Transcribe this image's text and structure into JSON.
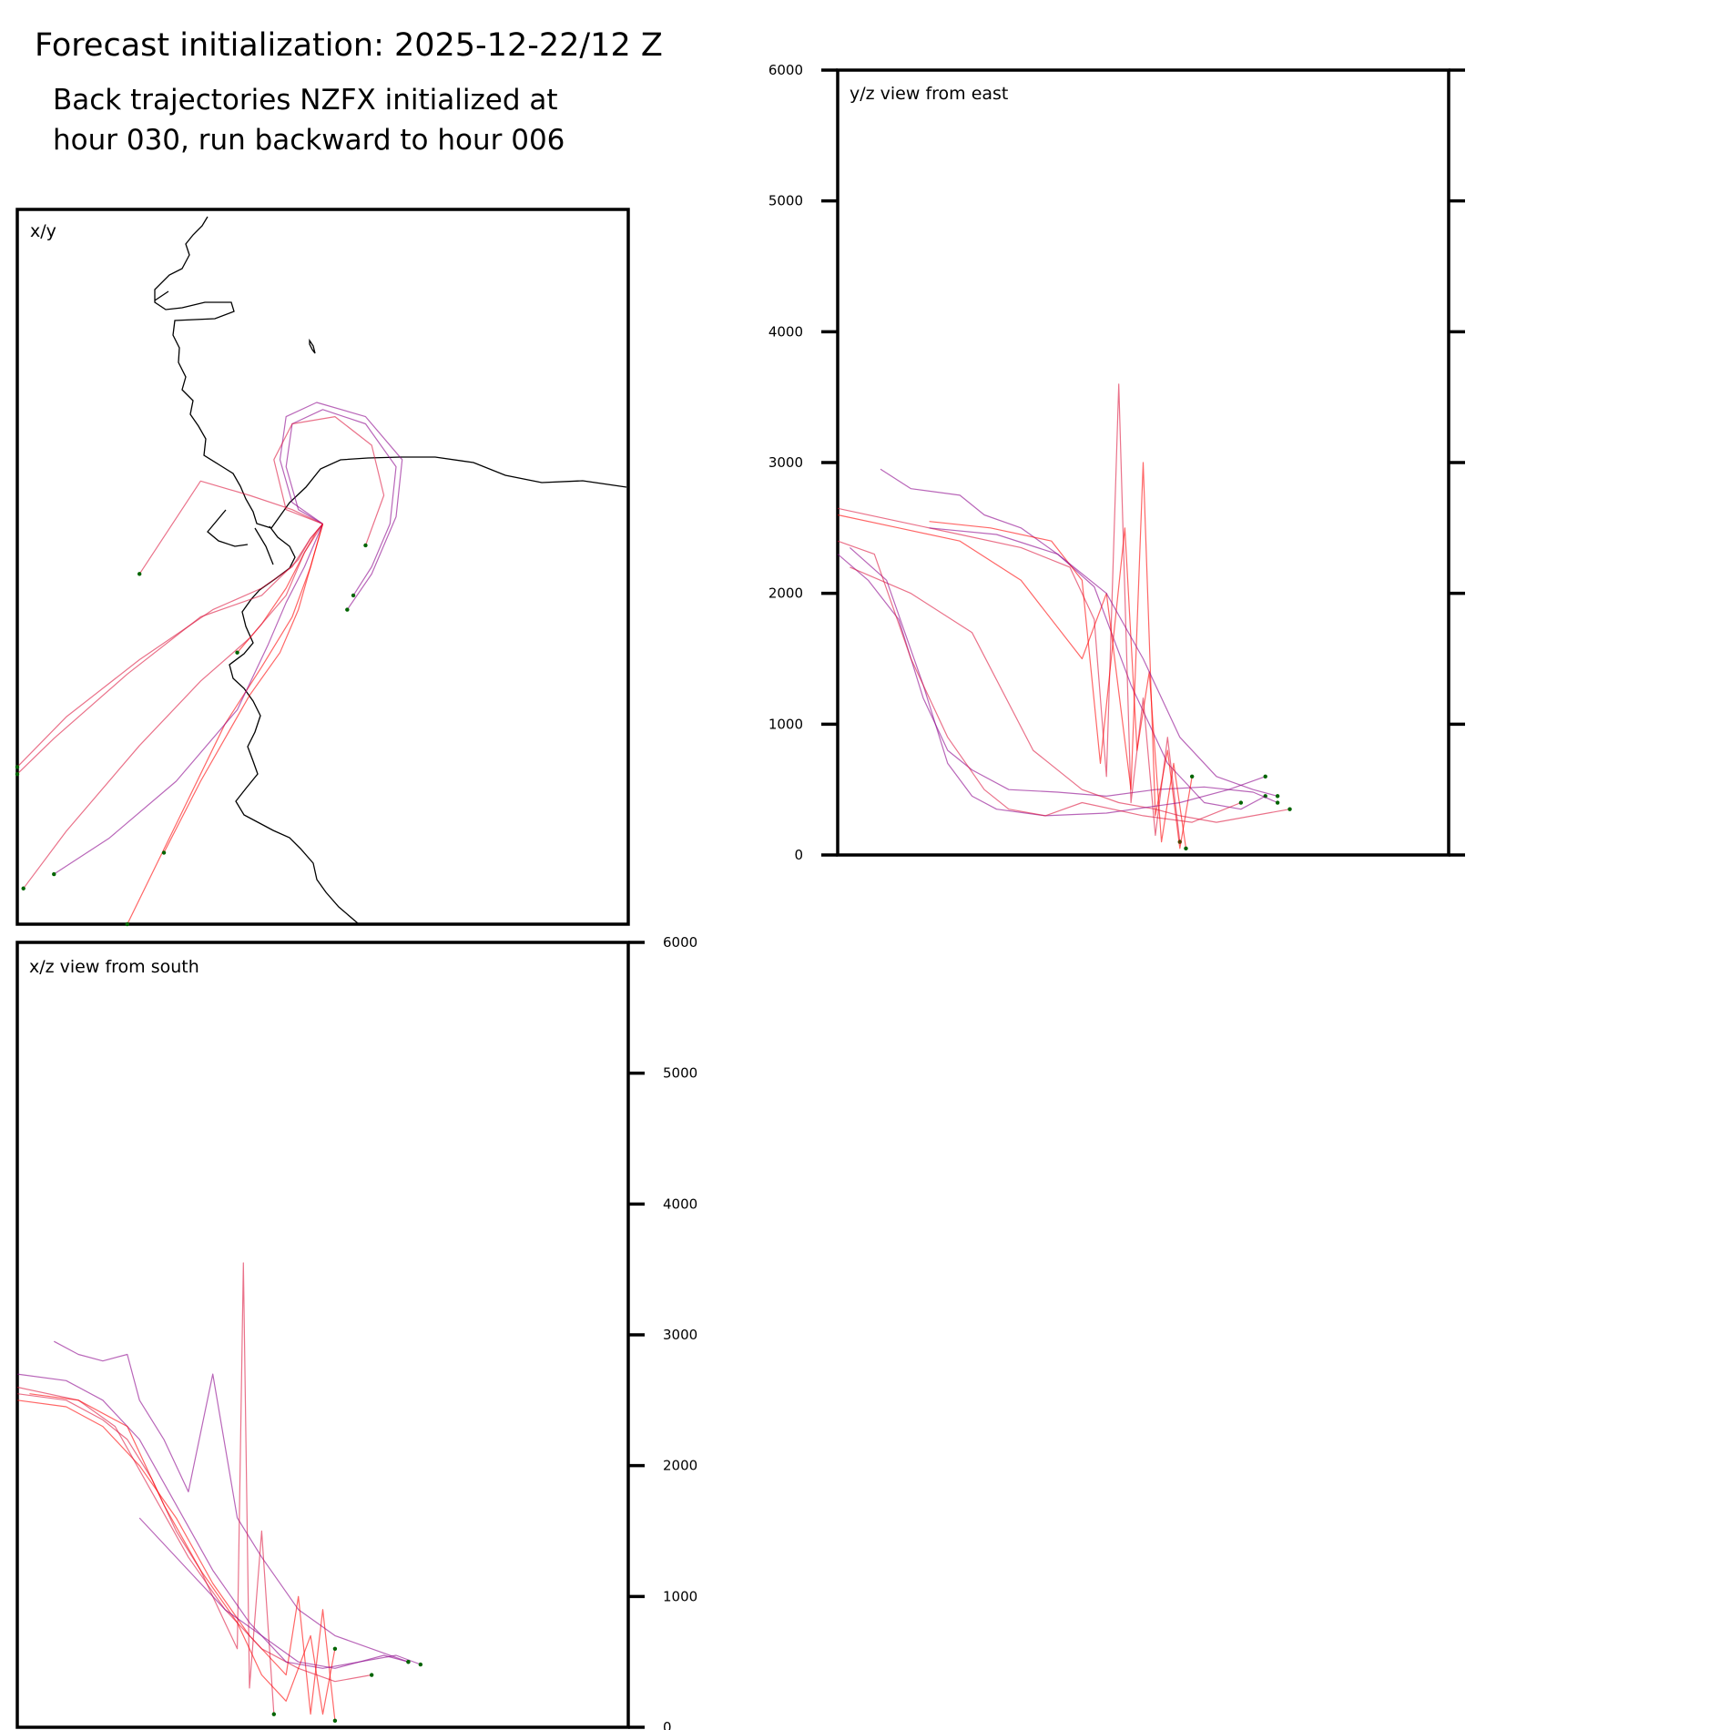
{
  "header": {
    "title": "Forecast initialization: 2025-12-22/12 Z",
    "subtitle_line1": "Back trajectories NZFX initialized at",
    "subtitle_line2": "hour 030, run backward to hour 006"
  },
  "colors": {
    "red": "#ff0000",
    "crimson": "#dc143c",
    "purple": "#8b008b",
    "endpoint": "#006400",
    "coast": "#000000"
  },
  "chart_data": [
    {
      "id": "xy",
      "type": "line",
      "title": "x/y",
      "description_note": "",
      "xlim": [
        0,
        100
      ],
      "ylim": [
        0,
        100
      ],
      "series": [
        {
          "name": "trajectory-1",
          "color": "#ff0000",
          "x": [
            50,
            49,
            47,
            44,
            40,
            36
          ],
          "y": [
            56,
            55,
            52,
            47,
            42,
            38
          ]
        },
        {
          "name": "trajectory-2",
          "color": "#dc143c",
          "x": [
            50,
            48,
            45,
            40,
            32,
            20,
            8,
            0
          ],
          "y": [
            56,
            54,
            50,
            47,
            44,
            37,
            29,
            22
          ]
        },
        {
          "name": "trajectory-3",
          "color": "#dc143c",
          "x": [
            50,
            48,
            46,
            40,
            30,
            18,
            6,
            0
          ],
          "y": [
            56,
            54,
            51,
            46,
            43,
            35,
            26,
            21
          ]
        },
        {
          "name": "trajectory-4",
          "color": "#8b008b",
          "x": [
            50,
            46,
            44,
            45,
            50,
            57,
            62,
            61,
            58,
            55
          ],
          "y": [
            56,
            58,
            64,
            70,
            72,
            70,
            64,
            56,
            50,
            46
          ]
        },
        {
          "name": "trajectory-5",
          "color": "#8b008b",
          "x": [
            50,
            45,
            43,
            44,
            49,
            57,
            63,
            62,
            58,
            54
          ],
          "y": [
            56,
            59,
            65,
            71,
            73,
            71,
            65,
            57,
            49,
            44
          ]
        },
        {
          "name": "trajectory-6",
          "color": "#dc143c",
          "x": [
            50,
            44,
            42,
            45,
            52,
            58,
            60,
            57
          ],
          "y": [
            56,
            58,
            65,
            70,
            71,
            67,
            60,
            53
          ]
        },
        {
          "name": "trajectory-7",
          "color": "#dc143c",
          "x": [
            50,
            47,
            44,
            38,
            30,
            20,
            8,
            1
          ],
          "y": [
            56,
            52,
            46,
            40,
            34,
            25,
            13,
            5
          ]
        },
        {
          "name": "trajectory-8",
          "color": "#ff0000",
          "x": [
            50,
            48,
            45,
            40,
            34,
            26,
            18
          ],
          "y": [
            56,
            50,
            43,
            36,
            28,
            14,
            0
          ]
        },
        {
          "name": "trajectory-9",
          "color": "#8b008b",
          "x": [
            50,
            47,
            44,
            41,
            36,
            26,
            15,
            6
          ],
          "y": [
            56,
            50,
            45,
            39,
            30,
            20,
            12,
            7
          ]
        },
        {
          "name": "trajectory-10",
          "color": "#dc143c",
          "x": [
            50,
            45,
            38,
            30,
            20
          ],
          "y": [
            56,
            58,
            60,
            62,
            49
          ]
        },
        {
          "name": "trajectory-11",
          "color": "#ff0000",
          "x": [
            50,
            48,
            46,
            43,
            38,
            30,
            24
          ],
          "y": [
            56,
            50,
            44,
            38,
            32,
            20,
            10
          ]
        }
      ]
    },
    {
      "id": "yz",
      "type": "line",
      "title": "y/z view from east",
      "xlim": [
        0,
        100
      ],
      "ylim": [
        0,
        6000
      ],
      "yticks": [
        0,
        1000,
        2000,
        3000,
        4000,
        5000,
        6000
      ],
      "series": [
        {
          "name": "trajectory-1",
          "color": "#8b008b",
          "x": [
            7,
            12,
            20,
            24,
            30,
            36,
            42,
            48,
            54,
            60,
            66,
            70
          ],
          "y": [
            2950,
            2800,
            2750,
            2600,
            2500,
            2300,
            2050,
            1300,
            700,
            400,
            350,
            450
          ]
        },
        {
          "name": "trajectory-2",
          "color": "#8b008b",
          "x": [
            0,
            5,
            10,
            14,
            18,
            22,
            28,
            36,
            44,
            52,
            60,
            68,
            72
          ],
          "y": [
            2300,
            2100,
            1800,
            1200,
            800,
            650,
            500,
            480,
            450,
            500,
            520,
            480,
            400
          ]
        },
        {
          "name": "trajectory-3",
          "color": "#dc143c",
          "x": [
            0,
            10,
            20,
            30,
            38,
            42,
            44,
            46,
            48,
            50,
            52,
            54,
            56
          ],
          "y": [
            2650,
            2550,
            2450,
            2350,
            2200,
            1800,
            600,
            3600,
            400,
            1200,
            150,
            900,
            100
          ]
        },
        {
          "name": "trajectory-4",
          "color": "#ff0000",
          "x": [
            0,
            10,
            20,
            30,
            40,
            44,
            48,
            50,
            52,
            54,
            56,
            58
          ],
          "y": [
            2600,
            2500,
            2400,
            2100,
            1500,
            2000,
            500,
            3000,
            300,
            800,
            50,
            600
          ]
        },
        {
          "name": "trajectory-5",
          "color": "#dc143c",
          "x": [
            2,
            12,
            22,
            32,
            40,
            46,
            52,
            56,
            62,
            68,
            74
          ],
          "y": [
            2200,
            2000,
            1700,
            800,
            500,
            400,
            350,
            300,
            250,
            300,
            350
          ]
        },
        {
          "name": "trajectory-6",
          "color": "#8b008b",
          "x": [
            2,
            8,
            14,
            18,
            22,
            26,
            34,
            44,
            56,
            64,
            70
          ],
          "y": [
            2350,
            2100,
            1300,
            700,
            450,
            350,
            300,
            320,
            400,
            500,
            600
          ]
        },
        {
          "name": "trajectory-7",
          "color": "#dc143c",
          "x": [
            0,
            6,
            12,
            18,
            24,
            28,
            34,
            40,
            50,
            58,
            66
          ],
          "y": [
            2400,
            2300,
            1500,
            900,
            500,
            350,
            300,
            400,
            300,
            250,
            400
          ]
        },
        {
          "name": "trajectory-8",
          "color": "#ff0000",
          "x": [
            15,
            25,
            35,
            40,
            43,
            47,
            49,
            51,
            53,
            55,
            57
          ],
          "y": [
            2550,
            2500,
            2400,
            2100,
            700,
            2500,
            800,
            1400,
            100,
            700,
            50
          ]
        },
        {
          "name": "trajectory-9",
          "color": "#8b008b",
          "x": [
            15,
            26,
            36,
            44,
            50,
            56,
            62,
            68,
            72
          ],
          "y": [
            2500,
            2450,
            2300,
            2000,
            1500,
            900,
            600,
            500,
            450
          ]
        }
      ]
    },
    {
      "id": "xz",
      "type": "line",
      "title": "x/z view from south",
      "xlim": [
        0,
        100
      ],
      "ylim": [
        0,
        6000
      ],
      "yticks": [
        0,
        1000,
        2000,
        3000,
        4000,
        5000,
        6000
      ],
      "series": [
        {
          "name": "trajectory-1",
          "color": "#8b008b",
          "x": [
            6,
            10,
            14,
            18,
            20,
            24,
            28,
            32,
            36,
            40,
            46,
            52,
            58,
            64
          ],
          "y": [
            2950,
            2850,
            2800,
            2850,
            2500,
            2200,
            1800,
            2700,
            1600,
            1300,
            900,
            700,
            600,
            500
          ]
        },
        {
          "name": "trajectory-2",
          "color": "#dc143c",
          "x": [
            0,
            8,
            14,
            18,
            22,
            26,
            30,
            34,
            36,
            37,
            38,
            40,
            42
          ],
          "y": [
            2550,
            2500,
            2350,
            2200,
            1900,
            1500,
            1200,
            800,
            600,
            3550,
            300,
            1500,
            100
          ]
        },
        {
          "name": "trajectory-3",
          "color": "#ff0000",
          "x": [
            0,
            8,
            14,
            20,
            26,
            32,
            38,
            44,
            46,
            48,
            50,
            52
          ],
          "y": [
            2500,
            2450,
            2300,
            2000,
            1600,
            1100,
            700,
            400,
            1000,
            100,
            900,
            50
          ]
        },
        {
          "name": "trajectory-4",
          "color": "#dc143c",
          "x": [
            0,
            10,
            16,
            22,
            28,
            34,
            40,
            46,
            52,
            58
          ],
          "y": [
            2600,
            2500,
            2300,
            1800,
            1300,
            900,
            600,
            450,
            350,
            400
          ]
        },
        {
          "name": "trajectory-5",
          "color": "#8b008b",
          "x": [
            0,
            8,
            14,
            20,
            26,
            32,
            38,
            44,
            50,
            56,
            62,
            66
          ],
          "y": [
            2700,
            2650,
            2500,
            2200,
            1700,
            1200,
            800,
            500,
            450,
            500,
            550,
            480
          ]
        },
        {
          "name": "trajectory-6",
          "color": "#ff0000",
          "x": [
            2,
            10,
            18,
            24,
            30,
            36,
            40,
            44,
            48,
            50,
            52
          ],
          "y": [
            2550,
            2500,
            2300,
            1700,
            1200,
            800,
            400,
            200,
            700,
            100,
            600
          ]
        },
        {
          "name": "trajectory-7",
          "color": "#8b008b",
          "x": [
            20,
            28,
            34,
            40,
            46,
            52,
            56,
            60,
            64
          ],
          "y": [
            1600,
            1200,
            900,
            700,
            500,
            450,
            500,
            550,
            500
          ]
        }
      ]
    }
  ]
}
